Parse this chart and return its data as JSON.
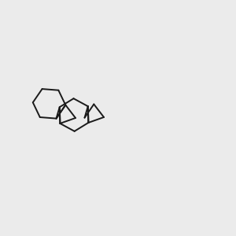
{
  "background_color": "#ebebeb",
  "bond_color": "#1a1a1a",
  "n_color": "#0000ff",
  "s_color": "#cccc00",
  "o_color": "#ff0000",
  "f_color": "#dd44dd",
  "figsize": [
    3.0,
    3.0
  ],
  "dpi": 100,
  "lw": 1.4,
  "dlw": 1.3,
  "doff": 2.2,
  "fs": 7.0
}
